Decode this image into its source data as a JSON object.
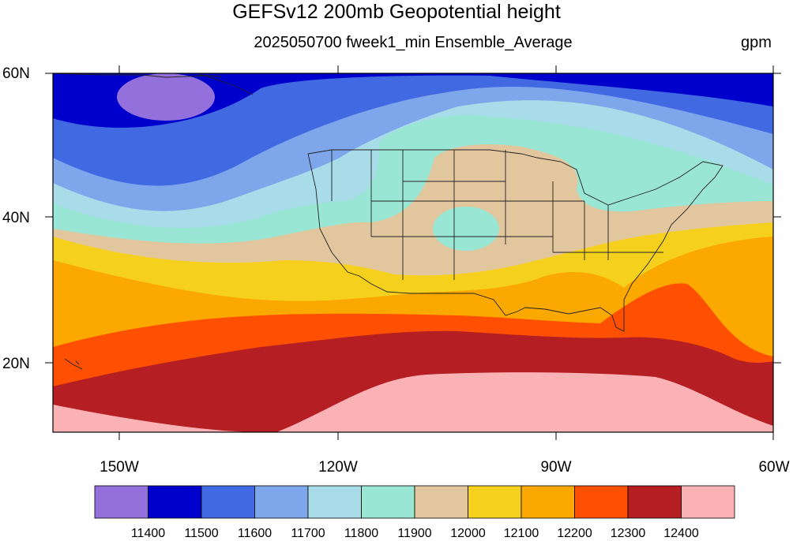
{
  "title": "GEFSv12 200mb Geopotential height",
  "subtitle": "2025050700 fweek1_min Ensemble_Average",
  "units": "gpm",
  "lat_labels": [
    "60N",
    "40N",
    "20N"
  ],
  "lon_labels": [
    "150W",
    "120W",
    "90W",
    "60W"
  ],
  "colorbar": {
    "colors": [
      "#9370db",
      "#0000cd",
      "#4169e1",
      "#7ea6eb",
      "#a8dce8",
      "#99e6d4",
      "#e2c79e",
      "#f5d01d",
      "#fba800",
      "#fe5000",
      "#b51f23",
      "#fbb2b4"
    ],
    "labels": [
      "11400",
      "11500",
      "11600",
      "11700",
      "11800",
      "11900",
      "12000",
      "12100",
      "12200",
      "12300",
      "12400"
    ]
  },
  "map": {
    "lat_range": [
      10,
      60
    ],
    "lon_range": [
      -160,
      -60
    ],
    "land_color": "#d9d9d9"
  }
}
